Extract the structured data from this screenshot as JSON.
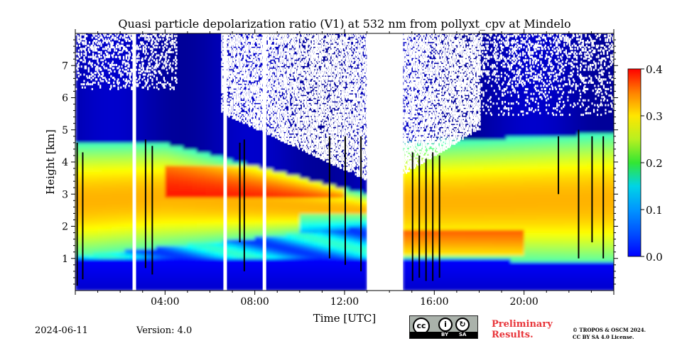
{
  "chart_data": {
    "type": "heatmap",
    "title": "Quasi particle depolarization ratio (V1) at 532 nm from pollyxt_cpv at Mindelo",
    "xlabel": "Time [UTC]",
    "ylabel": "Height [km]",
    "xlim": [
      "00:00",
      "24:00"
    ],
    "ylim": [
      0,
      8
    ],
    "x_ticks": [
      "04:00",
      "08:00",
      "12:00",
      "16:00",
      "20:00"
    ],
    "y_ticks": [
      "1",
      "2",
      "3",
      "4",
      "5",
      "6",
      "7"
    ],
    "colorbar": {
      "min": 0.0,
      "max": 0.4,
      "ticks": [
        "0.0",
        "0.1",
        "0.2",
        "0.3",
        "0.4"
      ],
      "colormap": "jet"
    },
    "no_data_gaps_hours": [
      [
        13.0,
        14.6
      ]
    ],
    "layers": [
      {
        "description": "near-surface marine layer",
        "height_km": [
          0.2,
          1.0
        ],
        "value": 0.05
      },
      {
        "description": "dust layer",
        "time_h": [
          0,
          13
        ],
        "base_km": [
          1.1,
          2.0
        ],
        "top_km": [
          4.6,
          3.0
        ],
        "value": 0.25
      },
      {
        "description": "dust layer",
        "time_h": [
          14.6,
          24
        ],
        "base_km": [
          1.0,
          0.9
        ],
        "top_km": [
          4.6,
          4.9
        ],
        "value": 0.2
      },
      {
        "description": "dust layer core",
        "time_h": [
          4,
          12
        ],
        "height_km": [
          3.0,
          3.8
        ],
        "value": 0.3
      },
      {
        "description": "lower depol band",
        "time_h": [
          15,
          20
        ],
        "height_km": [
          1.1,
          1.8
        ],
        "value": 0.28
      }
    ]
  },
  "footer": {
    "date": "2024-06-11",
    "version": "Version: 4.0",
    "prelim_line1": "Preliminary",
    "prelim_line2": "Results.",
    "copyright_line1": "© TROPOS & OSCM 2024.",
    "copyright_line2": "CC BY SA 4.0 License.",
    "license_badge": {
      "by": "BY",
      "sa": "SA",
      "cc": "cc"
    }
  }
}
